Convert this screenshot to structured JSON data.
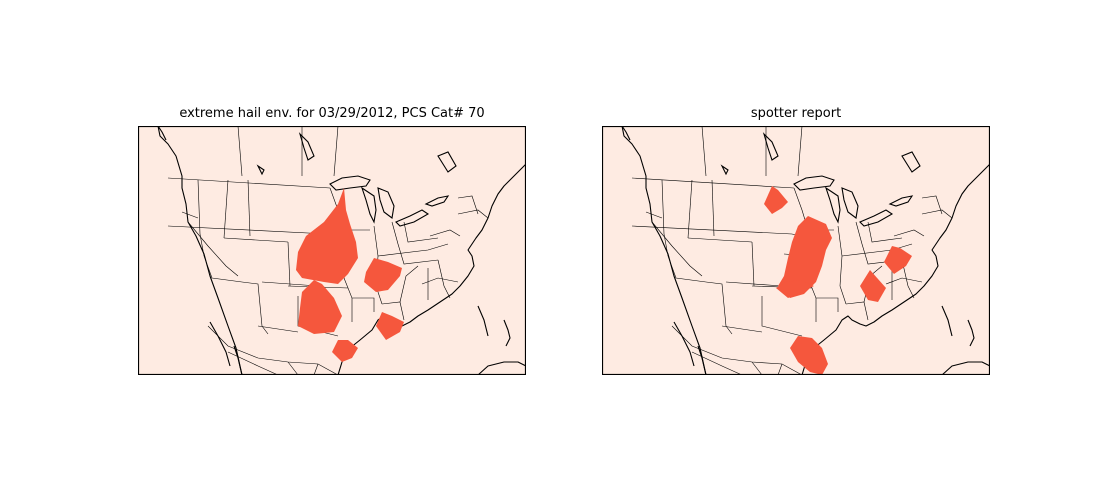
{
  "panels": [
    {
      "title": "extreme hail env. for 03/29/2012, PCS Cat# 70",
      "background_color": "#feebe2",
      "region_color": "#f5573d"
    },
    {
      "title": "spotter report",
      "background_color": "#feebe2",
      "region_color": "#f5573d"
    }
  ]
}
